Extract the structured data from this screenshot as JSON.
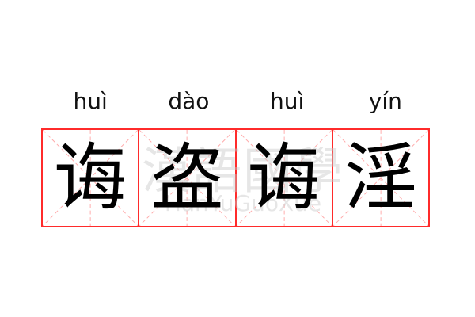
{
  "words": [
    {
      "pinyin": "huì",
      "hanzi": "诲"
    },
    {
      "pinyin": "dào",
      "hanzi": "盗"
    },
    {
      "pinyin": "huì",
      "hanzi": "诲"
    },
    {
      "pinyin": "yín",
      "hanzi": "淫"
    }
  ],
  "watermark": {
    "chinese": "漢語國學",
    "latin": "HanYuGuoXue"
  },
  "colors": {
    "grid_border": "#ff2b2b",
    "guide_lines": "#ffaaaa",
    "text": "#000000"
  }
}
